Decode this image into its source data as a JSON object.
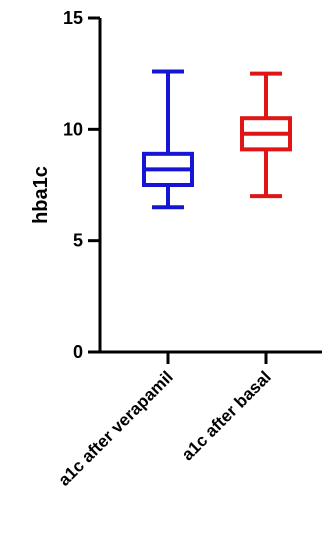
{
  "chart_data": {
    "type": "box",
    "title": "",
    "xlabel": "",
    "ylabel": "hba1c",
    "ylim": [
      0,
      15
    ],
    "yticks": [
      0,
      5,
      10,
      15
    ],
    "grid": false,
    "legend": "none",
    "categories": [
      "a1c after verapamil",
      "a1c after basal"
    ],
    "series": [
      {
        "min": 6.5,
        "q1": 7.5,
        "median": 8.2,
        "q3": 8.9,
        "max": 12.6,
        "color": "#1515d6"
      },
      {
        "min": 7.0,
        "q1": 9.1,
        "median": 9.8,
        "q3": 10.5,
        "max": 12.5,
        "color": "#e01515"
      }
    ]
  }
}
